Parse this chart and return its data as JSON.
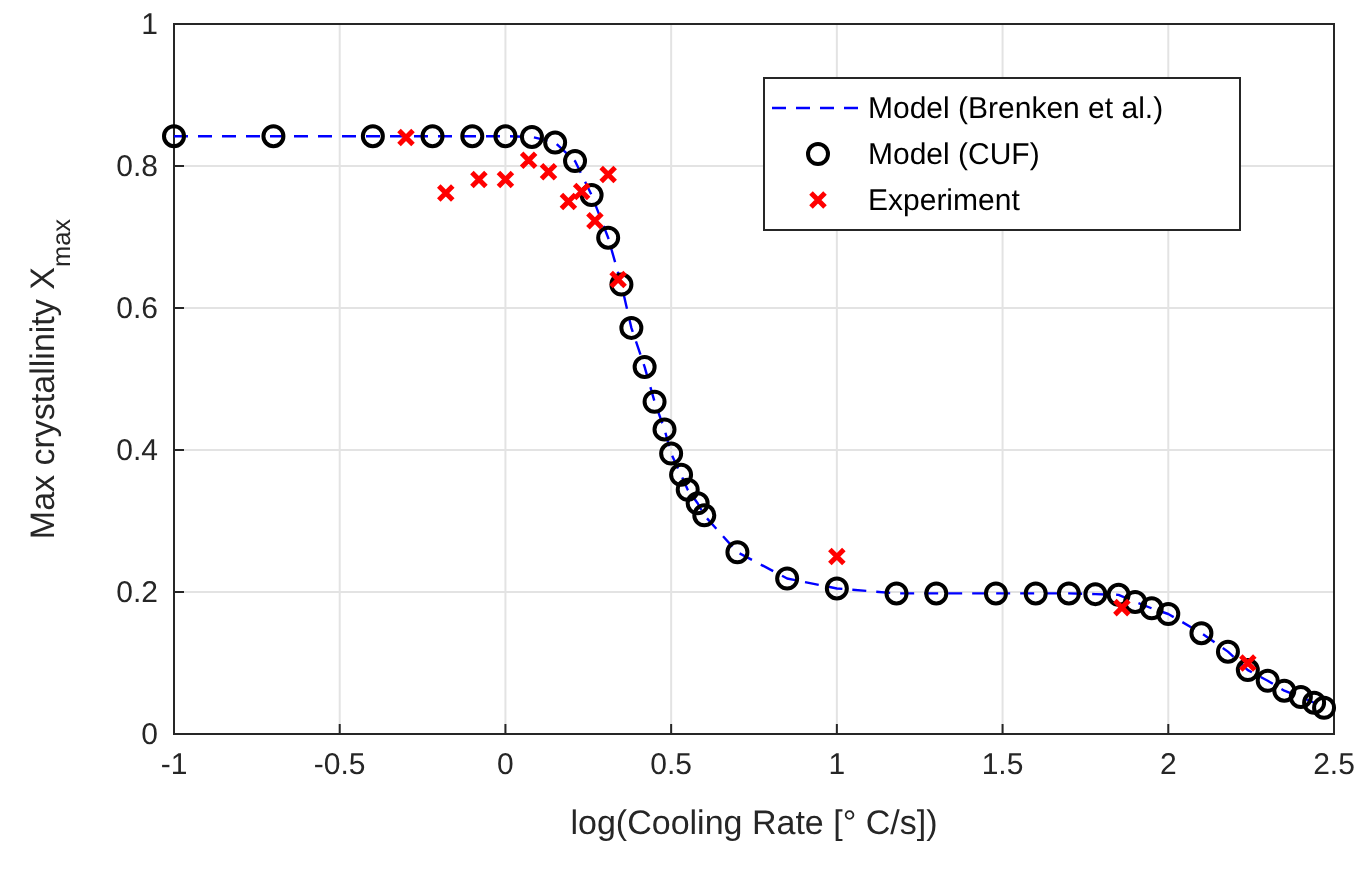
{
  "chart_data": {
    "type": "scatter",
    "xlabel": "log(Cooling Rate [° C/s])",
    "ylabel": "Max crystallinity X$_{max}$",
    "xlim": [
      -1,
      2.5
    ],
    "xticks": [
      -1,
      -0.5,
      0,
      0.5,
      1,
      1.5,
      2,
      2.5
    ],
    "ylim": [
      0,
      1
    ],
    "yticks": [
      0,
      0.2,
      0.4,
      0.6,
      0.8,
      1
    ],
    "grid": true,
    "legend": "top right",
    "series": [
      {
        "name": "Model (Brenken et al.)",
        "type": "line",
        "color": "#0000ff",
        "marker": "none",
        "line_style": "dashed",
        "x": [
          -1,
          -0.7,
          -0.4,
          -0.22,
          -0.1,
          0,
          0.08,
          0.15,
          0.21,
          0.26,
          0.31,
          0.35,
          0.38,
          0.42,
          0.45,
          0.48,
          0.5,
          0.53,
          0.55,
          0.58,
          0.6,
          0.7,
          0.85,
          1.0,
          1.18,
          1.3,
          1.48,
          1.6,
          1.7,
          1.78,
          1.85,
          1.9,
          1.95,
          2.0,
          2.1,
          2.18,
          2.24,
          2.3,
          2.35,
          2.4,
          2.44,
          2.47
        ],
        "values": [
          0.842,
          0.842,
          0.842,
          0.842,
          0.842,
          0.842,
          0.841,
          0.833,
          0.807,
          0.759,
          0.699,
          0.633,
          0.572,
          0.517,
          0.468,
          0.429,
          0.395,
          0.365,
          0.344,
          0.325,
          0.308,
          0.256,
          0.219,
          0.205,
          0.198,
          0.198,
          0.198,
          0.198,
          0.198,
          0.197,
          0.196,
          0.186,
          0.177,
          0.169,
          0.142,
          0.116,
          0.09,
          0.075,
          0.061,
          0.052,
          0.044,
          0.037
        ]
      },
      {
        "name": "Model (CUF)",
        "color": "#000000",
        "marker": "circle",
        "x": [
          -1,
          -0.7,
          -0.4,
          -0.22,
          -0.1,
          0,
          0.08,
          0.15,
          0.21,
          0.26,
          0.31,
          0.35,
          0.38,
          0.42,
          0.45,
          0.48,
          0.5,
          0.53,
          0.55,
          0.58,
          0.6,
          0.7,
          0.85,
          1.0,
          1.18,
          1.3,
          1.48,
          1.6,
          1.7,
          1.78,
          1.85,
          1.9,
          1.95,
          2.0,
          2.1,
          2.18,
          2.24,
          2.3,
          2.35,
          2.4,
          2.44,
          2.47
        ],
        "values": [
          0.842,
          0.842,
          0.842,
          0.842,
          0.842,
          0.842,
          0.841,
          0.833,
          0.807,
          0.759,
          0.699,
          0.633,
          0.572,
          0.517,
          0.468,
          0.429,
          0.395,
          0.365,
          0.344,
          0.325,
          0.308,
          0.256,
          0.219,
          0.205,
          0.198,
          0.198,
          0.198,
          0.198,
          0.198,
          0.197,
          0.196,
          0.186,
          0.177,
          0.169,
          0.142,
          0.116,
          0.09,
          0.075,
          0.061,
          0.052,
          0.044,
          0.037
        ]
      },
      {
        "name": "Experiment",
        "color": "#ff0000",
        "marker": "cross",
        "x": [
          -0.3,
          -0.18,
          -0.08,
          0,
          0.07,
          0.13,
          0.19,
          0.23,
          0.27,
          0.31,
          0.34,
          1.0,
          1.86,
          2.24
        ],
        "values": [
          0.84,
          0.762,
          0.781,
          0.781,
          0.808,
          0.792,
          0.75,
          0.764,
          0.723,
          0.788,
          0.64,
          0.25,
          0.178,
          0.1
        ]
      }
    ]
  }
}
